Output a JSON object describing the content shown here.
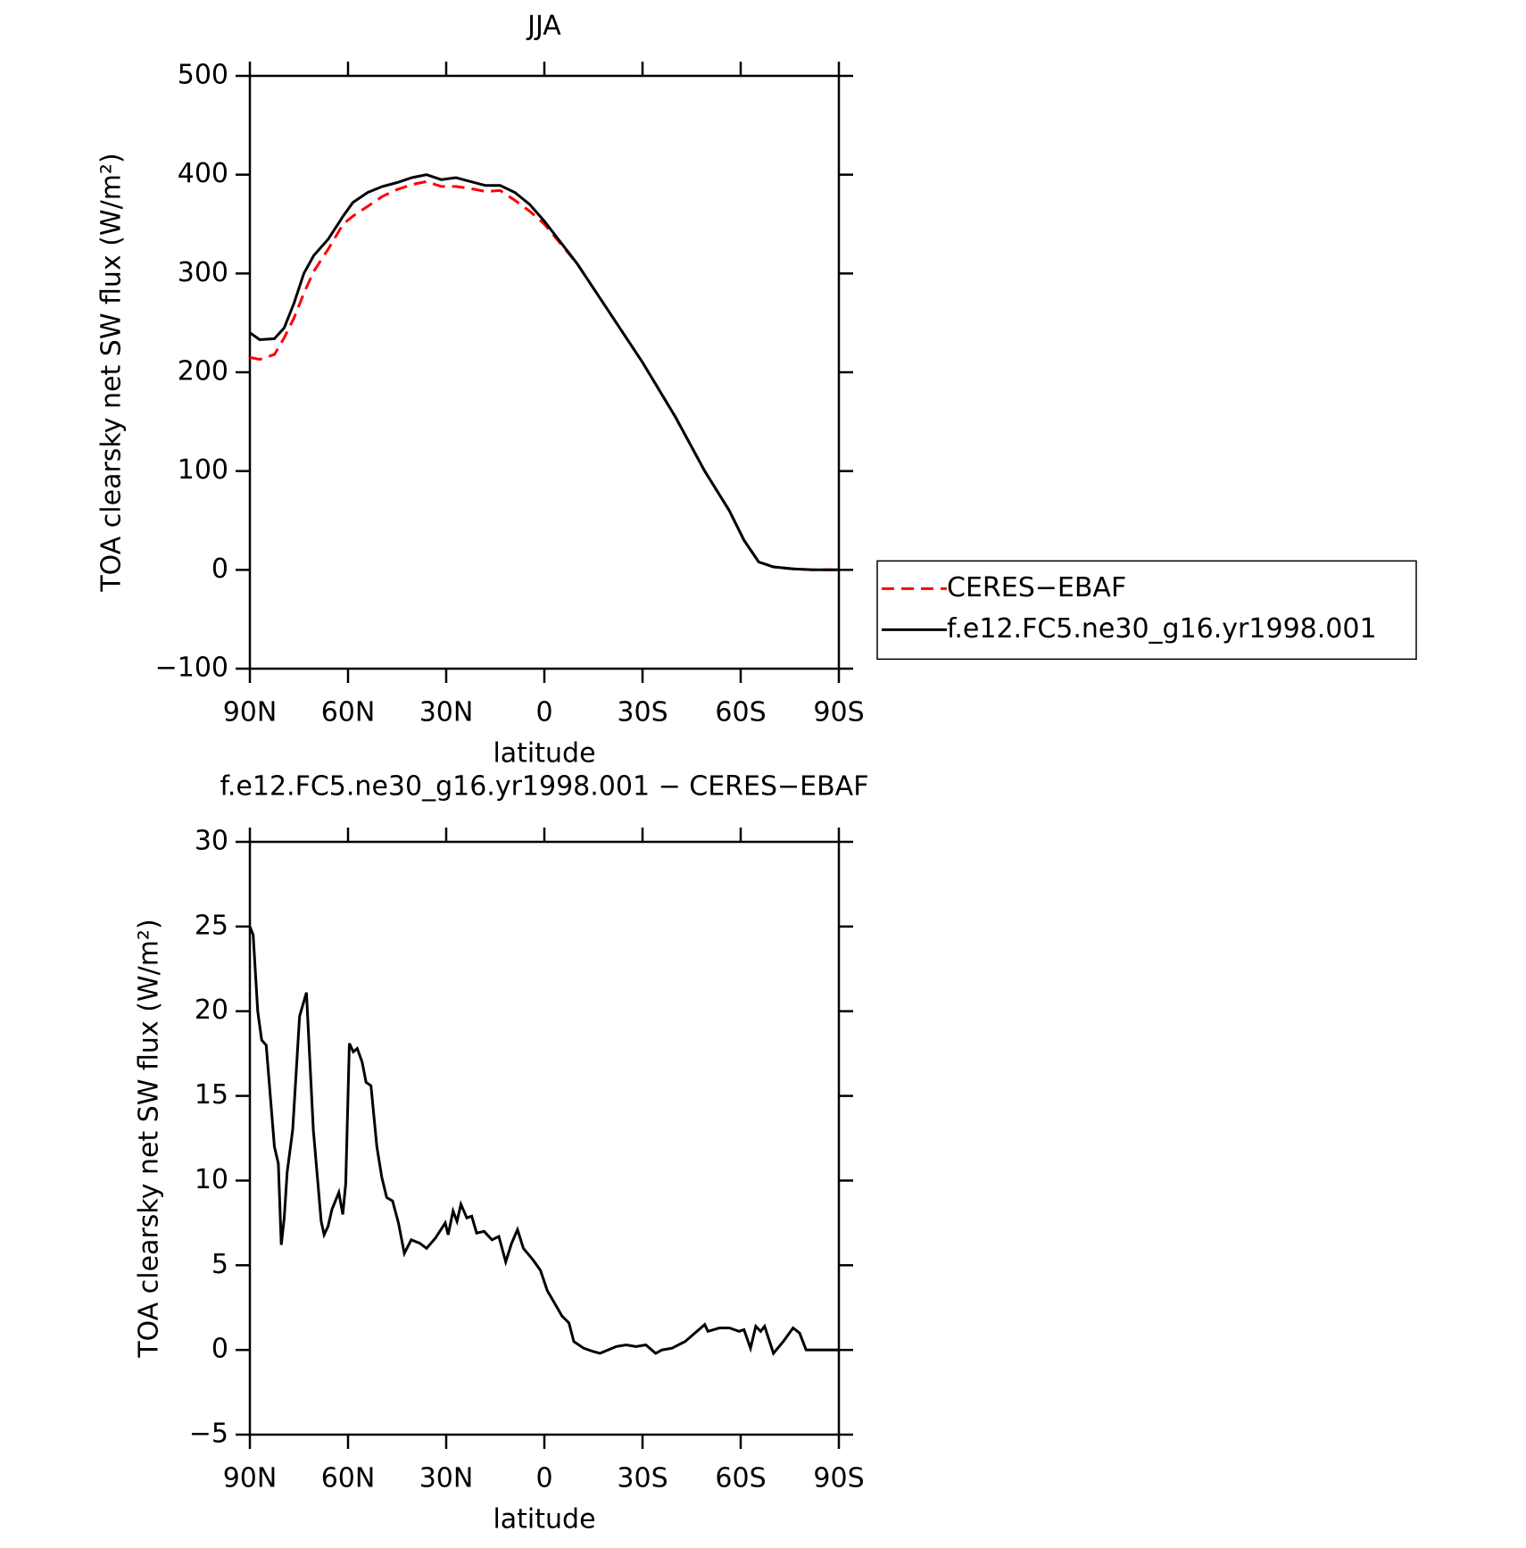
{
  "chart_data": [
    {
      "type": "line",
      "title": "JJA",
      "xlabel": "latitude",
      "ylabel": "TOA clearsky net SW flux (W/m²)",
      "xlim": [
        90,
        -90
      ],
      "ylim": [
        -100,
        500
      ],
      "xticks": [
        {
          "value": 90,
          "label": "90N"
        },
        {
          "value": 60,
          "label": "60N"
        },
        {
          "value": 30,
          "label": "30N"
        },
        0,
        {
          "value": -30,
          "label": "30S"
        },
        {
          "value": -60,
          "label": "60S"
        },
        {
          "value": -90,
          "label": "90S"
        }
      ],
      "yticks": [
        {
          "value": -100,
          "label": "−100"
        },
        0,
        100,
        200,
        300,
        400,
        500
      ],
      "legend_position": "right",
      "series": [
        {
          "name": "CERES−EBAF",
          "color": "#ff0000",
          "line_style": "dashed",
          "x": [
            90,
            87,
            82.5,
            79.5,
            76.5,
            73.5,
            70.5,
            66,
            61.5,
            58.5,
            54,
            49.5,
            45,
            40.5,
            36,
            31.5,
            27,
            22.5,
            18,
            13.5,
            9,
            4.5,
            0,
            -10,
            -19,
            -30,
            -40,
            -49,
            -56.5,
            -61,
            -65.5,
            -70,
            -76,
            -82,
            -90
          ],
          "values": [
            215,
            213,
            218,
            235,
            255,
            280,
            302,
            325,
            350,
            358,
            368,
            378,
            385,
            390,
            393,
            388,
            388,
            386,
            383,
            384,
            374,
            363,
            350,
            310,
            265,
            210,
            155,
            100,
            60,
            30,
            8,
            3,
            1,
            0,
            0
          ]
        },
        {
          "name": "f.e12.FC5.ne30_g16.yr1998.001",
          "color": "#000000",
          "line_style": "solid",
          "x": [
            90,
            87,
            82.5,
            79.5,
            76.5,
            73.5,
            70.5,
            66,
            61.5,
            58.5,
            54,
            49.5,
            45,
            40.5,
            36,
            31.5,
            27,
            22.5,
            18,
            13.5,
            9,
            4.5,
            0,
            -10,
            -19,
            -30,
            -40,
            -49,
            -56.5,
            -61,
            -65.5,
            -70,
            -76,
            -82,
            -90
          ],
          "values": [
            240,
            233,
            234,
            245,
            270,
            300,
            318,
            335,
            358,
            372,
            382,
            388,
            392,
            397,
            400,
            395,
            397,
            393,
            389,
            389,
            382,
            370,
            353,
            310,
            265,
            210,
            155,
            100,
            60,
            30,
            8,
            3,
            1,
            0,
            0
          ]
        }
      ]
    },
    {
      "type": "line",
      "title": "f.e12.FC5.ne30_g16.yr1998.001 − CERES−EBAF",
      "xlabel": "latitude",
      "ylabel": "TOA clearsky net SW flux (W/m²)",
      "xlim": [
        90,
        -90
      ],
      "ylim": [
        -5,
        30
      ],
      "xticks": [
        {
          "value": 90,
          "label": "90N"
        },
        {
          "value": 60,
          "label": "60N"
        },
        {
          "value": 30,
          "label": "30N"
        },
        0,
        {
          "value": -30,
          "label": "30S"
        },
        {
          "value": -60,
          "label": "60S"
        },
        {
          "value": -90,
          "label": "90S"
        }
      ],
      "yticks": [
        {
          "value": -5,
          "label": "−5"
        },
        0,
        5,
        10,
        15,
        20,
        25,
        30
      ],
      "series": [
        {
          "color": "#000000",
          "line_style": "solid",
          "x": [
            90,
            89,
            87.6,
            86.4,
            85,
            82.5,
            81.3,
            80.4,
            79.5,
            78.6,
            76.9,
            74.8,
            72.7,
            70.6,
            68.2,
            67.3,
            66.1,
            64.9,
            62.8,
            61.6,
            60.7,
            59.6,
            58.4,
            57.2,
            55.7,
            54.5,
            53,
            51.2,
            49.7,
            48.2,
            46.4,
            44.6,
            42.8,
            40.7,
            38.1,
            36,
            33.3,
            30.3,
            29.4,
            27.9,
            26.7,
            25.5,
            23.7,
            22.2,
            20.7,
            18.4,
            16,
            13.9,
            11.8,
            10,
            8.2,
            6.4,
            3.4,
            1.2,
            -0.9,
            -3.3,
            -5.4,
            -7.5,
            -9,
            -12,
            -15,
            -17,
            -19.5,
            -22,
            -25,
            -28,
            -31,
            -34,
            -36,
            -39,
            -43,
            -46,
            -49,
            -50,
            -53.5,
            -56.5,
            -59.5,
            -61,
            -63,
            -64.6,
            -66.1,
            -67.3,
            -70,
            -73,
            -76,
            -78,
            -80,
            -90
          ],
          "values": [
            25,
            24.5,
            20,
            18.3,
            18,
            12,
            11,
            6.2,
            7.8,
            10.5,
            13,
            19.7,
            21.1,
            13,
            7.6,
            6.8,
            7.3,
            8.3,
            9.3,
            8,
            9.8,
            18.1,
            17.6,
            17.8,
            17,
            15.8,
            15.6,
            12,
            10.2,
            9,
            8.8,
            7.5,
            5.7,
            6.5,
            6.3,
            6,
            6.6,
            7.5,
            6.8,
            8.2,
            7.6,
            8.6,
            7.8,
            7.9,
            6.9,
            7,
            6.5,
            6.7,
            5.2,
            6.3,
            7.1,
            6,
            5.3,
            4.7,
            3.5,
            2.7,
            2,
            1.6,
            0.5,
            0.1,
            -0.1,
            -0.2,
            0,
            0.2,
            0.3,
            0.2,
            0.3,
            -0.2,
            0,
            0.1,
            0.5,
            1,
            1.5,
            1.1,
            1.3,
            1.3,
            1.1,
            1.2,
            0.1,
            1.4,
            1.1,
            1.4,
            -0.2,
            0.5,
            1.3,
            1,
            0,
            0
          ]
        }
      ]
    }
  ]
}
